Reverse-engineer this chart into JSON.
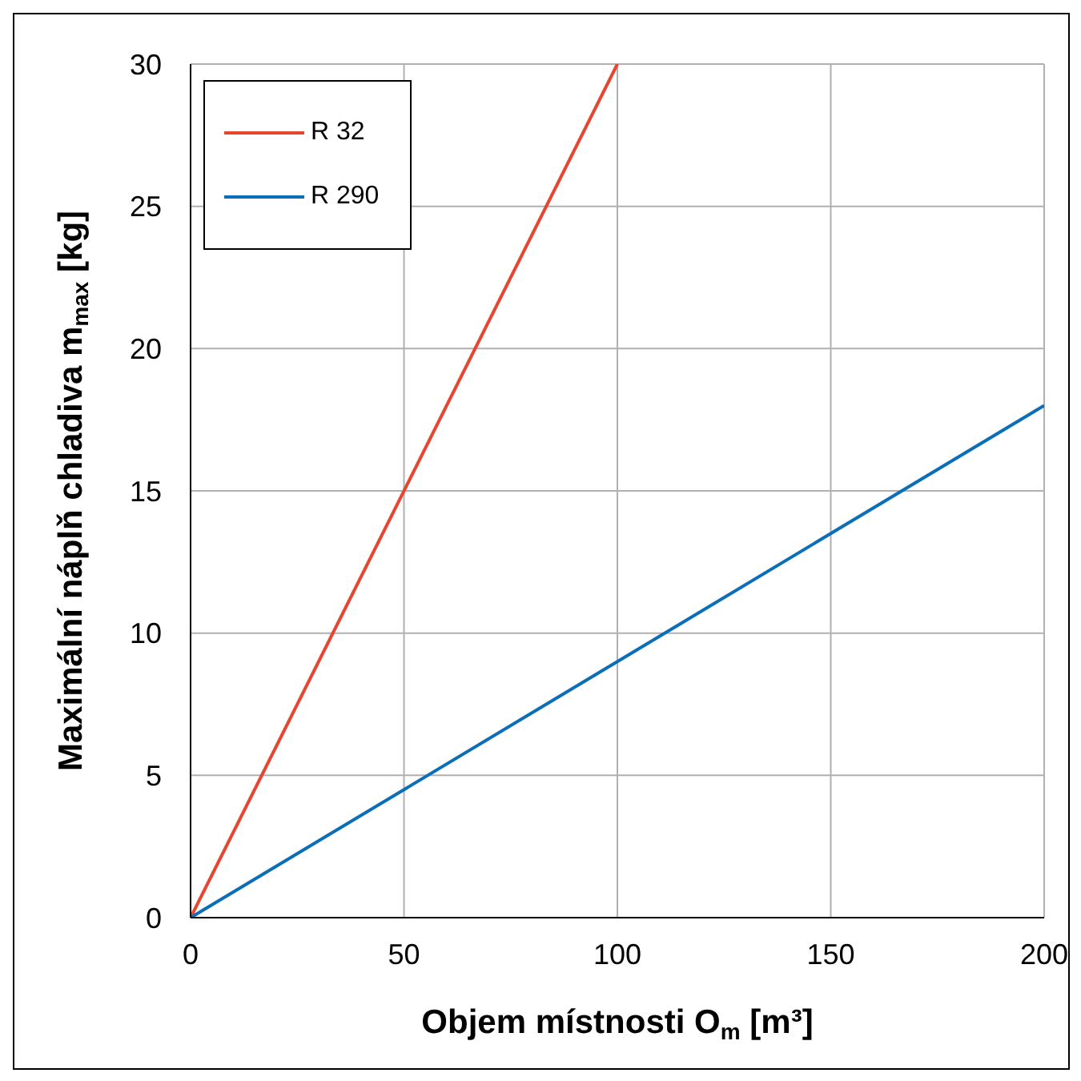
{
  "chart_data": {
    "type": "line",
    "xlabel": "Objem místnosti O$_{m}$ [m³]",
    "ylabel": "Maximální náplň chladiva m$_{max}$ [kg]",
    "series": [
      {
        "name": "R 32",
        "color": "#e8452f",
        "x": [
          0,
          100
        ],
        "values": [
          0,
          30
        ]
      },
      {
        "name": "R 290",
        "color": "#0a6fb8",
        "x": [
          0,
          200
        ],
        "values": [
          0,
          18
        ]
      }
    ],
    "xlim": [
      0,
      200
    ],
    "xticks": [
      0,
      50,
      100,
      150,
      200
    ],
    "ylim": [
      0,
      30
    ],
    "yticks": [
      0,
      5,
      10,
      15,
      20,
      25,
      30
    ],
    "grid": true,
    "legend": "top left",
    "marker": "none",
    "line_style": "solid"
  }
}
